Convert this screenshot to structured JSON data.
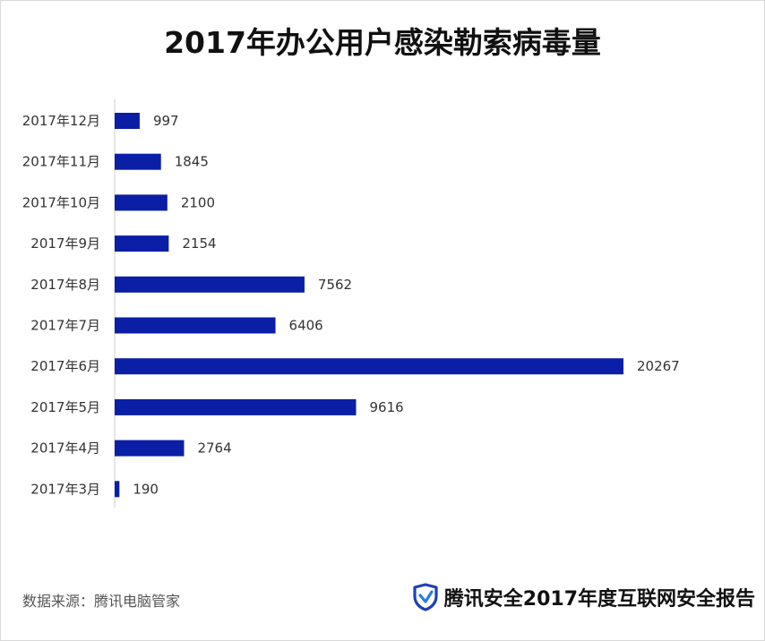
{
  "title": "2017年办公用户感染勒索病毒量",
  "source": "数据来源：腾讯电脑管家",
  "brand": {
    "text": "腾讯安全2017年度互联网安全报告",
    "icon": "tencent-security-shield-icon",
    "icon_color": "#1f3fb7"
  },
  "colors": {
    "bar": "#0a1fa6",
    "axis": "#cccccc"
  },
  "chart_data": {
    "type": "bar",
    "orientation": "horizontal",
    "title": "2017年办公用户感染勒索病毒量",
    "categories": [
      "2017年12月",
      "2017年11月",
      "2017年10月",
      "2017年9月",
      "2017年8月",
      "2017年7月",
      "2017年6月",
      "2017年5月",
      "2017年4月",
      "2017年3月"
    ],
    "values": [
      997,
      1845,
      2100,
      2154,
      7562,
      6406,
      20267,
      9616,
      2764,
      190
    ],
    "data_labels": [
      "997",
      "1845",
      "2100",
      "2154",
      "7562",
      "6406",
      "20267",
      "9616",
      "2764",
      "190"
    ],
    "xlim": [
      0,
      20267
    ],
    "grid": false,
    "legend": "none"
  }
}
